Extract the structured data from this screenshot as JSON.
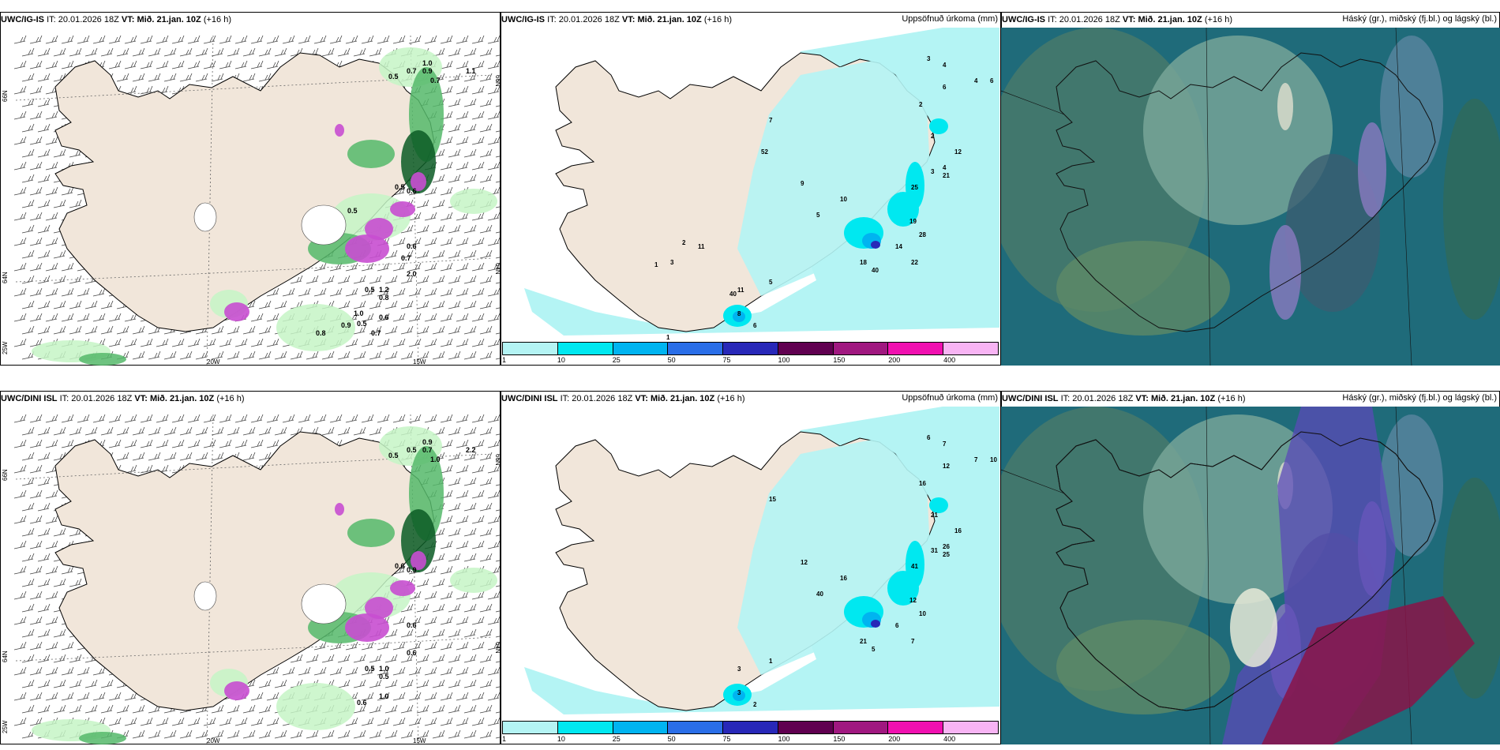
{
  "rows": [
    {
      "id": "top",
      "model": "UWC/IG-IS",
      "panels": [
        {
          "kind": "wind-precip",
          "model": "UWC/IG-IS",
          "it_label": "IT:",
          "it": "20.01.2026 18Z",
          "vt_label": "VT:",
          "vt": "Mið. 21.jan. 10Z",
          "lead": "(+16 h)",
          "right": "",
          "values": [
            "1.0",
            "0.7",
            "0.9",
            "0.7",
            "1.1",
            "0.5",
            "0.5",
            "0.6",
            "2.0",
            "1.2",
            "0.5",
            "0.6",
            "0.8",
            "0.5",
            "0.6",
            "1.0",
            "0.7",
            "0.5",
            "0.8",
            "0.9",
            "0.7"
          ]
        },
        {
          "kind": "accum",
          "model": "UWC/IG-IS",
          "it_label": "IT:",
          "it": "20.01.2026 18Z",
          "vt_label": "VT:",
          "vt": "Mið. 21.jan. 10Z",
          "lead": "(+16 h)",
          "right": "Uppsöfnuð úrkoma (mm)",
          "values": [
            "3",
            "4",
            "4",
            "6",
            "6",
            "2",
            "2",
            "4",
            "3",
            "12",
            "21",
            "25",
            "19",
            "28",
            "14",
            "22",
            "40",
            "18",
            "10",
            "5",
            "9",
            "7",
            "11",
            "8",
            "6",
            "5",
            "40",
            "52",
            "11",
            "2",
            "1",
            "3",
            "1"
          ]
        },
        {
          "kind": "cloud",
          "model": "UWC/IG-IS",
          "it_label": "IT:",
          "it": "20.01.2026 18Z",
          "vt_label": "VT:",
          "vt": "Mið. 21.jan. 10Z",
          "lead": "(+16 h)",
          "right": "Háský (gr.), miðský (fj.bl.) og lágský (bl.)"
        }
      ]
    },
    {
      "id": "bottom",
      "model": "UWC/DINI ISL",
      "panels": [
        {
          "kind": "wind-precip",
          "model": "UWC/DINI ISL",
          "it_label": "IT:",
          "it": "20.01.2026 18Z",
          "vt_label": "VT:",
          "vt": "Mið. 21.jan. 10Z",
          "lead": "(+16 h)",
          "right": "",
          "values": [
            "0.9",
            "0.5",
            "0.7",
            "1.0",
            "2.2",
            "0.5",
            "0.6",
            "0.9",
            "0.6",
            "1.0",
            "0.5",
            "0.6",
            "0.5",
            "0.6",
            "1.0"
          ]
        },
        {
          "kind": "accum",
          "model": "UWC/DINI ISL",
          "it_label": "IT:",
          "it": "20.01.2026 18Z",
          "vt_label": "VT:",
          "vt": "Mið. 21.jan. 10Z",
          "lead": "(+16 h)",
          "right": "Uppsöfnuð úrkoma (mm)",
          "values": [
            "6",
            "7",
            "7",
            "10",
            "12",
            "16",
            "21",
            "26",
            "31",
            "16",
            "25",
            "41",
            "12",
            "10",
            "6",
            "7",
            "5",
            "21",
            "16",
            "40",
            "12",
            "15",
            "3",
            "3",
            "2",
            "1"
          ]
        },
        {
          "kind": "cloud",
          "model": "UWC/DINI ISL",
          "it_label": "IT:",
          "it": "20.01.2026 18Z",
          "vt_label": "VT:",
          "vt": "Mið. 21.jan. 10Z",
          "lead": "(+16 h)",
          "right": "Háský (gr.), miðský (fj.bl.) og lágský (bl.)"
        }
      ]
    }
  ],
  "graticule": {
    "lat_labels": [
      "66N",
      "64N",
      "25W"
    ],
    "lon_labels": [
      "20W",
      "15W"
    ],
    "east_labels": [
      "66N",
      "64N"
    ]
  },
  "colorbar": {
    "ticks": [
      "1",
      "10",
      "25",
      "50",
      "75",
      "100",
      "150",
      "200",
      "400"
    ],
    "colors": [
      "#b4f4f4",
      "#00e8f0",
      "#00b4f0",
      "#2a6ee8",
      "#2828b8",
      "#600050",
      "#a01880",
      "#f010b0",
      "#f8b4f4"
    ]
  },
  "colors": {
    "land": "#f1e6da",
    "precip_light": "#c6f5c6",
    "precip_mid": "#55b86a",
    "precip_dark": "#0a5a24",
    "snow": "#c84ed0",
    "cloud_low": "#1f6b7a",
    "cloud_mid": "#5a8a9c",
    "cloud_high": "#7c9c70"
  }
}
